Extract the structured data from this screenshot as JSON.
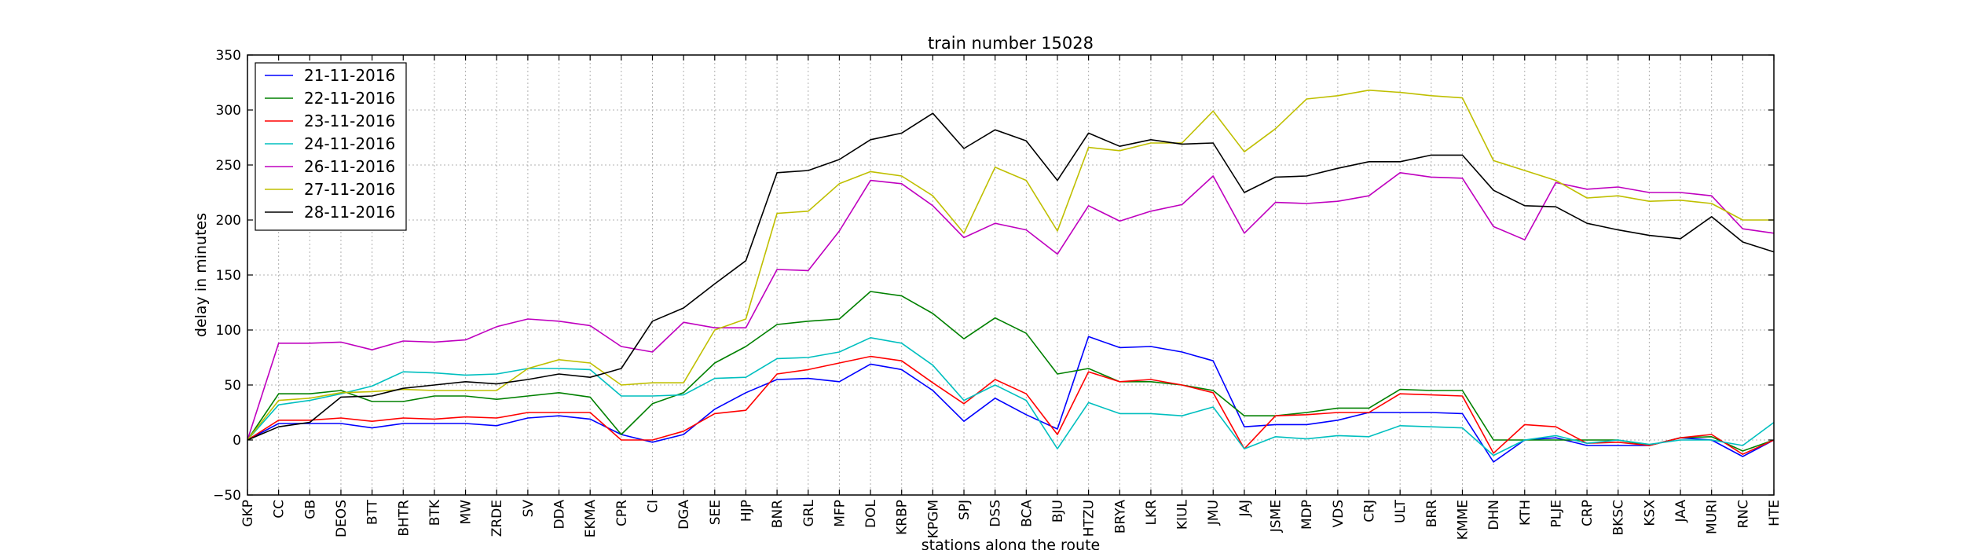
{
  "chart_data": {
    "type": "line",
    "title": "train number 15028",
    "xlabel": "stations along the route",
    "ylabel": "delay in minutes",
    "ylim": [
      -50,
      350
    ],
    "yticks": [
      -50,
      0,
      50,
      100,
      150,
      200,
      250,
      300,
      350
    ],
    "grid": true,
    "legend_position": "top-left",
    "categories": [
      "GKP",
      "CC",
      "GB",
      "DEOS",
      "BTT",
      "BHTR",
      "BTK",
      "MW",
      "ZRDE",
      "SV",
      "DDA",
      "EKMA",
      "CPR",
      "CI",
      "DGA",
      "SEE",
      "HJP",
      "BNR",
      "GRL",
      "MFP",
      "DOL",
      "KRBP",
      "KPGM",
      "SPJ",
      "DSS",
      "BCA",
      "BJU",
      "HTZU",
      "BRYA",
      "LKR",
      "KIUL",
      "JMU",
      "JAJ",
      "JSME",
      "MDP",
      "VDS",
      "CRJ",
      "ULT",
      "BRR",
      "KMME",
      "DHN",
      "KTH",
      "PLJE",
      "CRP",
      "BKSC",
      "KSX",
      "JAA",
      "MURI",
      "RNC",
      "HTE"
    ],
    "series": [
      {
        "name": "21-11-2016",
        "color": "#0000ff",
        "values": [
          0,
          15,
          15,
          15,
          11,
          15,
          15,
          15,
          13,
          20,
          22,
          19,
          5,
          -2,
          5,
          28,
          43,
          55,
          56,
          53,
          69,
          64,
          45,
          17,
          38,
          23,
          10,
          94,
          84,
          85,
          80,
          72,
          12,
          14,
          14,
          18,
          25,
          25,
          25,
          24,
          -20,
          0,
          2,
          -5,
          -5,
          -5,
          2,
          0,
          -15,
          0
        ]
      },
      {
        "name": "22-11-2016",
        "color": "#008000",
        "values": [
          0,
          42,
          42,
          45,
          35,
          35,
          40,
          40,
          37,
          40,
          43,
          39,
          5,
          33,
          43,
          70,
          85,
          105,
          108,
          110,
          135,
          131,
          115,
          92,
          111,
          97,
          60,
          65,
          53,
          53,
          50,
          45,
          22,
          22,
          25,
          29,
          29,
          46,
          45,
          45,
          0,
          0,
          0,
          0,
          0,
          -5,
          2,
          3,
          -10,
          0
        ]
      },
      {
        "name": "23-11-2016",
        "color": "#ff0000",
        "values": [
          0,
          18,
          18,
          20,
          17,
          20,
          19,
          21,
          20,
          25,
          25,
          25,
          0,
          0,
          8,
          24,
          27,
          60,
          64,
          70,
          76,
          72,
          52,
          33,
          55,
          42,
          5,
          62,
          53,
          55,
          50,
          43,
          -8,
          22,
          23,
          25,
          25,
          42,
          41,
          40,
          -12,
          14,
          12,
          -3,
          -2,
          -5,
          2,
          5,
          -13,
          0
        ]
      },
      {
        "name": "24-11-2016",
        "color": "#00bfbf",
        "values": [
          0,
          32,
          36,
          42,
          49,
          62,
          61,
          59,
          60,
          65,
          65,
          64,
          40,
          40,
          41,
          56,
          57,
          74,
          75,
          80,
          93,
          88,
          68,
          36,
          50,
          36,
          -8,
          34,
          24,
          24,
          22,
          30,
          -8,
          3,
          1,
          4,
          3,
          13,
          12,
          11,
          -14,
          0,
          4,
          -3,
          0,
          -4,
          0,
          0,
          -5,
          16
        ]
      },
      {
        "name": "26-11-2016",
        "color": "#bf00bf",
        "values": [
          0,
          88,
          88,
          89,
          82,
          90,
          89,
          91,
          103,
          110,
          108,
          104,
          85,
          80,
          107,
          102,
          102,
          155,
          154,
          190,
          236,
          233,
          213,
          184,
          197,
          191,
          169,
          213,
          199,
          208,
          214,
          240,
          188,
          216,
          215,
          217,
          222,
          243,
          239,
          238,
          194,
          182,
          234,
          228,
          230,
          225,
          225,
          222,
          192,
          188
        ]
      },
      {
        "name": "27-11-2016",
        "color": "#bfbf00",
        "values": [
          0,
          36,
          38,
          43,
          44,
          46,
          45,
          45,
          45,
          65,
          73,
          70,
          50,
          52,
          52,
          100,
          110,
          206,
          208,
          233,
          244,
          240,
          222,
          188,
          248,
          236,
          190,
          266,
          263,
          270,
          270,
          299,
          262,
          283,
          310,
          313,
          318,
          316,
          313,
          311,
          254,
          245,
          236,
          220,
          222,
          217,
          218,
          215,
          200,
          200
        ]
      },
      {
        "name": "28-11-2016",
        "color": "#000000",
        "values": [
          0,
          12,
          16,
          39,
          40,
          47,
          50,
          53,
          51,
          55,
          60,
          57,
          65,
          108,
          120,
          142,
          163,
          243,
          245,
          255,
          273,
          279,
          297,
          265,
          282,
          272,
          236,
          279,
          267,
          273,
          269,
          270,
          225,
          239,
          240,
          247,
          253,
          253,
          259,
          259,
          227,
          213,
          212,
          197,
          191,
          186,
          183,
          203,
          180,
          171
        ]
      }
    ]
  }
}
